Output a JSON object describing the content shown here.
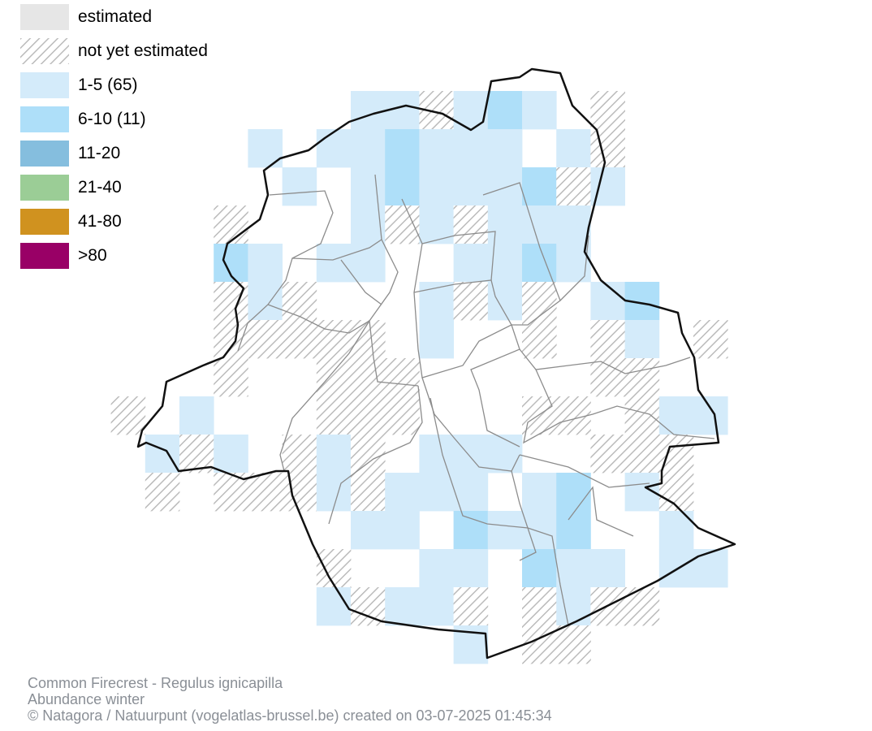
{
  "legend": {
    "items": [
      {
        "label": "estimated",
        "swatch": "solid",
        "color": "#e6e6e6"
      },
      {
        "label": "not yet estimated",
        "swatch": "hatch",
        "color": "#bbbbbb"
      },
      {
        "label": "1-5 (65)",
        "swatch": "solid",
        "color": "#d4ebfa"
      },
      {
        "label": "6-10 (11)",
        "swatch": "solid",
        "color": "#aedff9"
      },
      {
        "label": "11-20",
        "swatch": "solid",
        "color": "#85bede"
      },
      {
        "label": "21-40",
        "swatch": "solid",
        "color": "#9bcd96"
      },
      {
        "label": "41-80",
        "swatch": "solid",
        "color": "#d0921f"
      },
      {
        "label": ">80",
        "swatch": "solid",
        "color": "#990066"
      }
    ]
  },
  "footer": {
    "species": "Common Firecrest - Regulus ignicapilla",
    "subtitle": "Abundance winter",
    "credit": "© Natagora / Natuurpunt (vogelatlas-brussel.be) created on 03-07-2025 01:45:34"
  },
  "map_data": {
    "grid_origin_col": 3,
    "grid_origin_row": 2,
    "cells": [
      [
        10,
        2,
        1
      ],
      [
        11,
        2,
        1
      ],
      [
        12,
        2,
        0
      ],
      [
        13,
        2,
        1
      ],
      [
        14,
        2,
        2
      ],
      [
        15,
        2,
        1
      ],
      [
        17,
        2,
        0
      ],
      [
        7,
        3,
        1
      ],
      [
        9,
        3,
        1
      ],
      [
        10,
        3,
        1
      ],
      [
        11,
        3,
        2
      ],
      [
        12,
        3,
        1
      ],
      [
        13,
        3,
        1
      ],
      [
        14,
        3,
        1
      ],
      [
        16,
        3,
        1
      ],
      [
        17,
        3,
        0
      ],
      [
        8,
        4,
        1
      ],
      [
        10,
        4,
        1
      ],
      [
        11,
        4,
        2
      ],
      [
        12,
        4,
        1
      ],
      [
        13,
        4,
        1
      ],
      [
        14,
        4,
        1
      ],
      [
        15,
        4,
        2
      ],
      [
        16,
        4,
        0
      ],
      [
        17,
        4,
        1
      ],
      [
        6,
        5,
        0
      ],
      [
        10,
        5,
        1
      ],
      [
        11,
        5,
        0
      ],
      [
        12,
        5,
        1
      ],
      [
        13,
        5,
        0
      ],
      [
        14,
        5,
        1
      ],
      [
        15,
        5,
        1
      ],
      [
        16,
        5,
        1
      ],
      [
        6,
        6,
        2
      ],
      [
        7,
        6,
        1
      ],
      [
        9,
        6,
        1
      ],
      [
        10,
        6,
        1
      ],
      [
        13,
        6,
        1
      ],
      [
        14,
        6,
        1
      ],
      [
        15,
        6,
        2
      ],
      [
        16,
        6,
        1
      ],
      [
        6,
        7,
        0
      ],
      [
        7,
        7,
        1
      ],
      [
        8,
        7,
        0
      ],
      [
        12,
        7,
        1
      ],
      [
        13,
        7,
        0
      ],
      [
        14,
        7,
        1
      ],
      [
        15,
        7,
        0
      ],
      [
        17,
        7,
        1
      ],
      [
        18,
        7,
        2
      ],
      [
        6,
        8,
        0
      ],
      [
        7,
        8,
        0
      ],
      [
        8,
        8,
        0
      ],
      [
        9,
        8,
        0
      ],
      [
        10,
        8,
        0
      ],
      [
        12,
        8,
        1
      ],
      [
        15,
        8,
        0
      ],
      [
        17,
        8,
        0
      ],
      [
        18,
        8,
        1
      ],
      [
        20,
        8,
        0
      ],
      [
        6,
        9,
        0
      ],
      [
        9,
        9,
        0
      ],
      [
        10,
        9,
        0
      ],
      [
        11,
        9,
        0
      ],
      [
        17,
        9,
        0
      ],
      [
        18,
        9,
        0
      ],
      [
        3,
        10,
        0
      ],
      [
        5,
        10,
        1
      ],
      [
        9,
        10,
        0
      ],
      [
        10,
        10,
        0
      ],
      [
        11,
        10,
        0
      ],
      [
        15,
        10,
        0
      ],
      [
        16,
        10,
        0
      ],
      [
        18,
        10,
        0
      ],
      [
        19,
        10,
        1
      ],
      [
        20,
        10,
        1
      ],
      [
        4,
        11,
        1
      ],
      [
        5,
        11,
        0
      ],
      [
        6,
        11,
        1
      ],
      [
        8,
        11,
        0
      ],
      [
        9,
        11,
        1
      ],
      [
        10,
        11,
        0
      ],
      [
        12,
        11,
        1
      ],
      [
        13,
        11,
        1
      ],
      [
        14,
        11,
        1
      ],
      [
        17,
        11,
        0
      ],
      [
        18,
        11,
        0
      ],
      [
        19,
        11,
        0
      ],
      [
        4,
        12,
        0
      ],
      [
        6,
        12,
        0
      ],
      [
        7,
        12,
        0
      ],
      [
        8,
        12,
        0
      ],
      [
        9,
        12,
        1
      ],
      [
        10,
        12,
        0
      ],
      [
        11,
        12,
        1
      ],
      [
        12,
        12,
        1
      ],
      [
        13,
        12,
        1
      ],
      [
        15,
        12,
        1
      ],
      [
        16,
        12,
        2
      ],
      [
        18,
        12,
        1
      ],
      [
        19,
        12,
        0
      ],
      [
        10,
        13,
        1
      ],
      [
        11,
        13,
        1
      ],
      [
        13,
        13,
        2
      ],
      [
        14,
        13,
        1
      ],
      [
        15,
        13,
        1
      ],
      [
        16,
        13,
        2
      ],
      [
        19,
        13,
        1
      ],
      [
        9,
        14,
        0
      ],
      [
        12,
        14,
        1
      ],
      [
        13,
        14,
        1
      ],
      [
        15,
        14,
        2
      ],
      [
        16,
        14,
        1
      ],
      [
        17,
        14,
        1
      ],
      [
        19,
        14,
        1
      ],
      [
        20,
        14,
        1
      ],
      [
        9,
        15,
        1
      ],
      [
        10,
        15,
        0
      ],
      [
        11,
        15,
        1
      ],
      [
        12,
        15,
        1
      ],
      [
        13,
        15,
        0
      ],
      [
        15,
        15,
        0
      ],
      [
        16,
        15,
        1
      ],
      [
        17,
        15,
        0
      ],
      [
        18,
        15,
        0
      ],
      [
        13,
        16,
        1
      ],
      [
        15,
        16,
        0
      ],
      [
        16,
        16,
        0
      ]
    ]
  }
}
